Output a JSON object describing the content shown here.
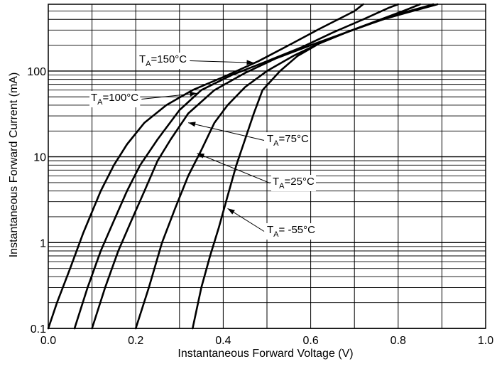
{
  "chart_data": {
    "type": "line",
    "title": "",
    "xlabel": "Instantaneous Forward Voltage (V)",
    "ylabel": "Instantaneous Forward Current (mA)",
    "xlim": [
      0.0,
      1.0
    ],
    "ylim": [
      0.1,
      600
    ],
    "x_scale": "linear",
    "y_scale": "log",
    "grid": true,
    "legend": "none",
    "x_ticks": [
      "0.0",
      "0.2",
      "0.4",
      "0.6",
      "0.8",
      "1.0"
    ],
    "y_ticks": [
      "0.1",
      "1",
      "10",
      "100"
    ],
    "x_tick_values": [
      0.0,
      0.2,
      0.4,
      0.6,
      0.8,
      1.0
    ],
    "y_tick_values": [
      0.1,
      1,
      10,
      100
    ],
    "line_color": "#000000",
    "grid_color": "#000000",
    "series": [
      {
        "name": "TA=150°C",
        "points": [
          [
            0.0,
            0.1
          ],
          [
            0.02,
            0.2
          ],
          [
            0.05,
            0.5
          ],
          [
            0.08,
            1.3
          ],
          [
            0.12,
            4
          ],
          [
            0.15,
            8
          ],
          [
            0.18,
            14
          ],
          [
            0.22,
            25
          ],
          [
            0.27,
            40
          ],
          [
            0.33,
            60
          ],
          [
            0.4,
            85
          ],
          [
            0.48,
            130
          ],
          [
            0.55,
            200
          ],
          [
            0.62,
            310
          ],
          [
            0.7,
            500
          ],
          [
            0.72,
            600
          ]
        ]
      },
      {
        "name": "TA=100°C",
        "points": [
          [
            0.06,
            0.1
          ],
          [
            0.09,
            0.3
          ],
          [
            0.12,
            0.8
          ],
          [
            0.15,
            1.8
          ],
          [
            0.18,
            4
          ],
          [
            0.21,
            8
          ],
          [
            0.25,
            16
          ],
          [
            0.3,
            35
          ],
          [
            0.35,
            60
          ],
          [
            0.42,
            90
          ],
          [
            0.5,
            130
          ],
          [
            0.58,
            190
          ],
          [
            0.65,
            280
          ],
          [
            0.72,
            400
          ],
          [
            0.78,
            550
          ],
          [
            0.8,
            600
          ]
        ]
      },
      {
        "name": "TA=75°C",
        "points": [
          [
            0.1,
            0.1
          ],
          [
            0.13,
            0.3
          ],
          [
            0.16,
            0.8
          ],
          [
            0.19,
            1.8
          ],
          [
            0.22,
            4
          ],
          [
            0.25,
            9
          ],
          [
            0.28,
            16
          ],
          [
            0.32,
            32
          ],
          [
            0.38,
            60
          ],
          [
            0.45,
            95
          ],
          [
            0.52,
            140
          ],
          [
            0.6,
            200
          ],
          [
            0.68,
            280
          ],
          [
            0.76,
            400
          ],
          [
            0.82,
            520
          ],
          [
            0.85,
            600
          ]
        ]
      },
      {
        "name": "TA=25°C",
        "points": [
          [
            0.2,
            0.1
          ],
          [
            0.23,
            0.3
          ],
          [
            0.26,
            1
          ],
          [
            0.29,
            2.5
          ],
          [
            0.32,
            6
          ],
          [
            0.35,
            12
          ],
          [
            0.38,
            25
          ],
          [
            0.41,
            40
          ],
          [
            0.45,
            65
          ],
          [
            0.5,
            100
          ],
          [
            0.56,
            150
          ],
          [
            0.62,
            210
          ],
          [
            0.68,
            280
          ],
          [
            0.75,
            380
          ],
          [
            0.82,
            480
          ],
          [
            0.88,
            580
          ],
          [
            0.89,
            600
          ]
        ]
      },
      {
        "name": "TA= -55°C",
        "points": [
          [
            0.33,
            0.1
          ],
          [
            0.35,
            0.3
          ],
          [
            0.37,
            0.7
          ],
          [
            0.39,
            1.5
          ],
          [
            0.41,
            3.5
          ],
          [
            0.43,
            8
          ],
          [
            0.45,
            16
          ],
          [
            0.47,
            32
          ],
          [
            0.49,
            60
          ],
          [
            0.53,
            100
          ],
          [
            0.57,
            150
          ],
          [
            0.62,
            210
          ],
          [
            0.68,
            280
          ],
          [
            0.74,
            360
          ],
          [
            0.8,
            460
          ],
          [
            0.86,
            560
          ],
          [
            0.88,
            600
          ]
        ]
      }
    ],
    "annotations": [
      {
        "series": "TA=150°C",
        "label_main": "T",
        "label_sub": "A",
        "label_rest": "=150°C",
        "point": [
          0.47,
          125
        ]
      },
      {
        "series": "TA=100°C",
        "label_main": "T",
        "label_sub": "A",
        "label_rest": "=100°C",
        "point": [
          0.34,
          55
        ]
      },
      {
        "series": "TA=75°C",
        "label_main": "T",
        "label_sub": "A",
        "label_rest": "=75°C",
        "point": [
          0.32,
          25
        ]
      },
      {
        "series": "TA=25°C",
        "label_main": "T",
        "label_sub": "A",
        "label_rest": "=25°C",
        "point": [
          0.34,
          11
        ]
      },
      {
        "series": "TA= -55°C",
        "label_main": "T",
        "label_sub": "A",
        "label_rest": "= -55°C",
        "point": [
          0.41,
          2.5
        ]
      }
    ]
  }
}
